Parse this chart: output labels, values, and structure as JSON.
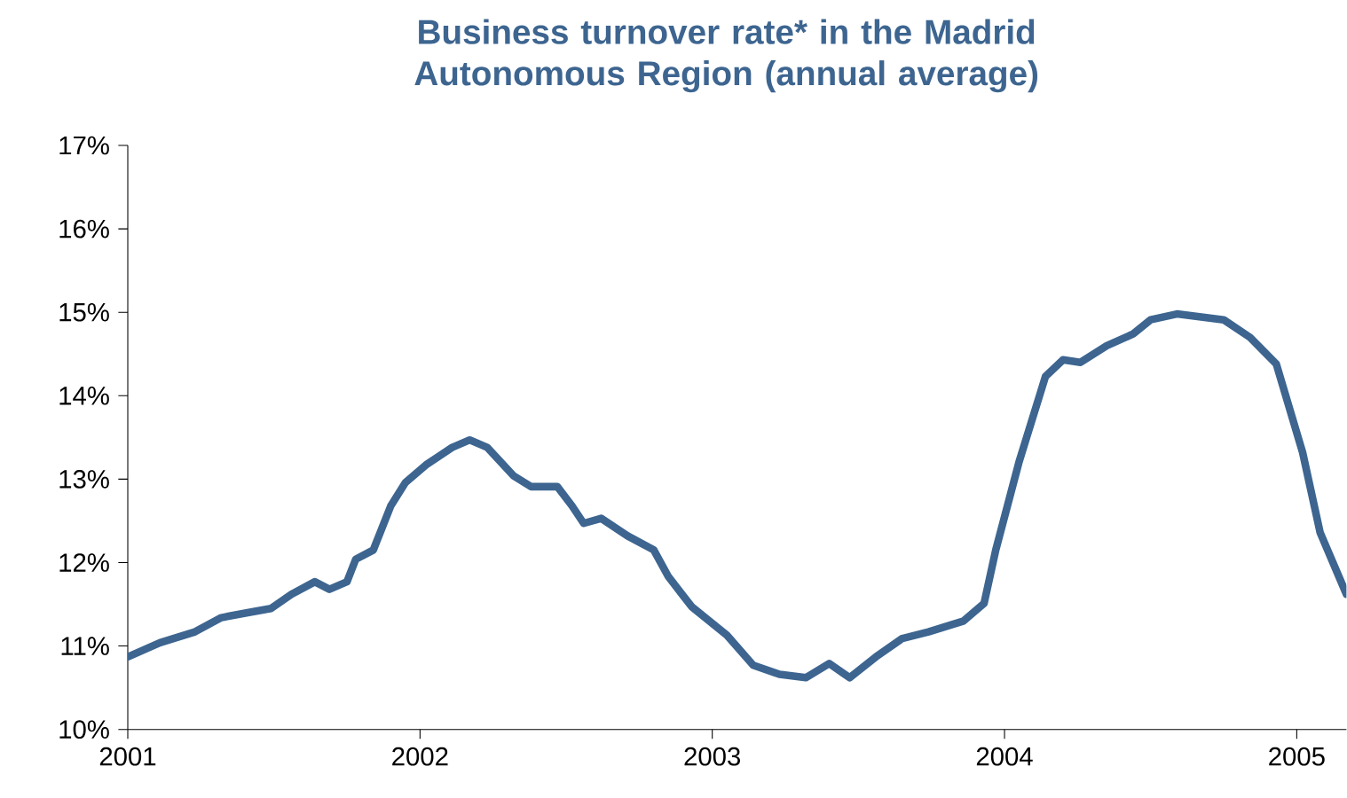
{
  "chart_data": {
    "type": "line",
    "title": "Business turnover rate* in the Madrid Autonomous Region (annual average)",
    "x": [
      2001.0,
      2001.11,
      2001.23,
      2001.32,
      2001.41,
      2001.49,
      2001.56,
      2001.64,
      2001.69,
      2001.75,
      2001.78,
      2001.84,
      2001.9,
      2001.95,
      2002.02,
      2002.11,
      2002.17,
      2002.23,
      2002.32,
      2002.38,
      2002.47,
      2002.52,
      2002.56,
      2002.62,
      2002.71,
      2002.8,
      2002.85,
      2002.93,
      2003.05,
      2003.14,
      2003.23,
      2003.32,
      2003.4,
      2003.47,
      2003.56,
      2003.65,
      2003.74,
      2003.86,
      2003.93,
      2003.97,
      2004.05,
      2004.14,
      2004.2,
      2004.26,
      2004.35,
      2004.44,
      2004.5,
      2004.59,
      2004.75,
      2004.84,
      2004.93,
      2005.02,
      2005.08,
      2005.17
    ],
    "series": [
      {
        "color": "#3d6590",
        "values": [
          10.87,
          11.04,
          11.17,
          11.34,
          11.4,
          11.45,
          11.62,
          11.77,
          11.68,
          11.77,
          12.04,
          12.15,
          12.68,
          12.96,
          13.17,
          13.38,
          13.47,
          13.38,
          13.04,
          12.91,
          12.91,
          12.68,
          12.47,
          12.53,
          12.32,
          12.15,
          11.83,
          11.47,
          11.13,
          10.77,
          10.66,
          10.62,
          10.79,
          10.62,
          10.87,
          11.09,
          11.17,
          11.3,
          11.51,
          12.15,
          13.21,
          14.23,
          14.43,
          14.4,
          14.6,
          14.74,
          14.91,
          14.98,
          14.91,
          14.7,
          14.38,
          13.32,
          12.36,
          11.62
        ]
      }
    ],
    "xlim": [
      2001,
      2005.17
    ],
    "ylim": [
      10,
      17
    ],
    "xticks": [
      2001,
      2002,
      2003,
      2004,
      2005
    ],
    "yticks": [
      {
        "value": 10,
        "label": "10%"
      },
      {
        "value": 11,
        "label": "11%"
      },
      {
        "value": 12,
        "label": "12%"
      },
      {
        "value": 13,
        "label": "13%"
      },
      {
        "value": 14,
        "label": "14%"
      },
      {
        "value": 15,
        "label": "15%"
      },
      {
        "value": 16,
        "label": "16%"
      },
      {
        "value": 17,
        "label": "17%"
      }
    ],
    "marker": "none",
    "line_style": "solid"
  }
}
